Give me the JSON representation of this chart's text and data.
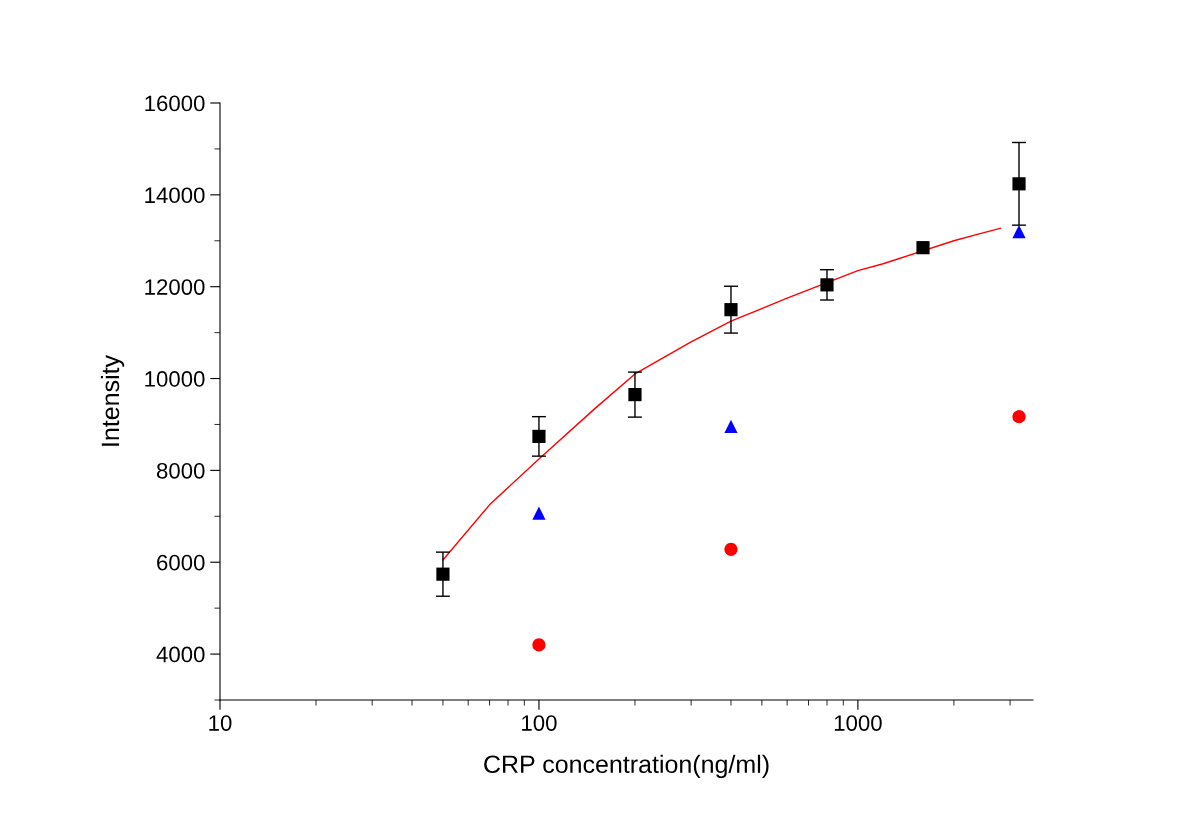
{
  "chart_data": {
    "type": "scatter",
    "xlabel": "CRP concentration(ng/ml)",
    "ylabel": "Intensity",
    "log": "x",
    "xlim": [
      10,
      3540
    ],
    "xticks": [
      10,
      100,
      1000
    ],
    "ylim": [
      3000,
      16000
    ],
    "yticks": [
      4000,
      6000,
      8000,
      10000,
      12000,
      14000,
      16000
    ],
    "grid": false,
    "series": [
      {
        "type": "line",
        "color": "#ff0000",
        "marker": "none",
        "line_style": "solid",
        "x": [
          50,
          70,
          100,
          150,
          200,
          300,
          400,
          600,
          1000,
          1200,
          2000,
          2400,
          2800
        ],
        "values": [
          6050,
          7250,
          8250,
          9350,
          10100,
          10800,
          11250,
          11750,
          12350,
          12500,
          13000,
          13150,
          13270
        ]
      },
      {
        "color": "#000000",
        "marker": "square",
        "x": [
          50,
          100,
          200,
          400,
          800,
          1600,
          3200
        ],
        "values": [
          5740,
          8740,
          9650,
          11500,
          12040,
          12850,
          14240
        ],
        "errors": [
          480,
          430,
          490,
          510,
          330,
          null,
          900
        ]
      },
      {
        "color": "#0000ff",
        "marker": "triangle",
        "x": [
          100,
          400,
          3200
        ],
        "values": [
          7070,
          8960,
          13200
        ]
      },
      {
        "color": "#ff0000",
        "marker": "circle",
        "x": [
          100,
          400,
          3200
        ],
        "values": [
          4200,
          6280,
          9170
        ]
      }
    ]
  }
}
